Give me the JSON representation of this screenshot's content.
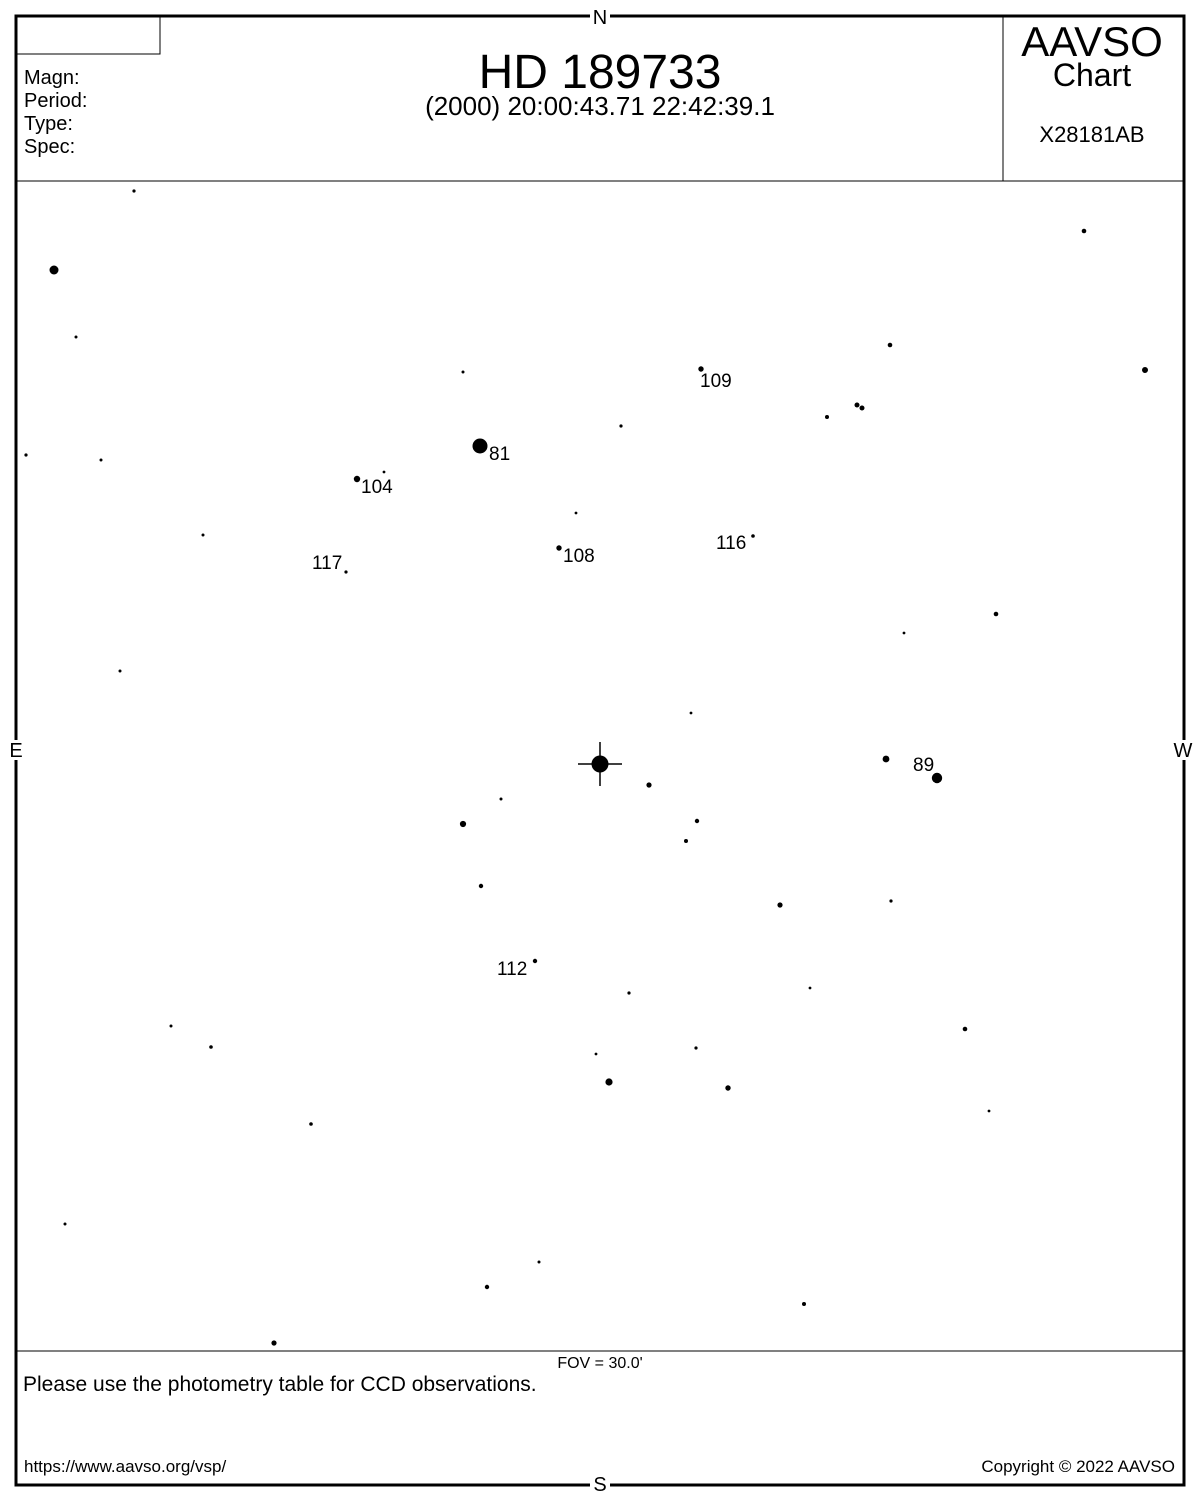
{
  "header": {
    "star_name": "HD 189733",
    "coordinates": "(2000) 20:00:43.71  22:42:39.1",
    "info_labels": [
      "Magn:",
      "Period:",
      "Type:",
      "Spec:"
    ],
    "brand_line1": "AAVSO",
    "brand_line2": "Chart",
    "chart_id": "X28181AB"
  },
  "directions": {
    "north": "N",
    "south": "S",
    "east": "E",
    "west": "W"
  },
  "fov_label": "FOV = 30.0'",
  "footer": {
    "note": "Please use the photometry table for CCD observations.",
    "url": "https://www.aavso.org/vsp/",
    "copyright": "Copyright © 2022 AAVSO"
  },
  "colors": {
    "ink": "#000000",
    "paper": "#ffffff"
  },
  "comparison_labels": [
    "81",
    "104",
    "108",
    "109",
    "116",
    "117",
    "89",
    "112"
  ]
}
